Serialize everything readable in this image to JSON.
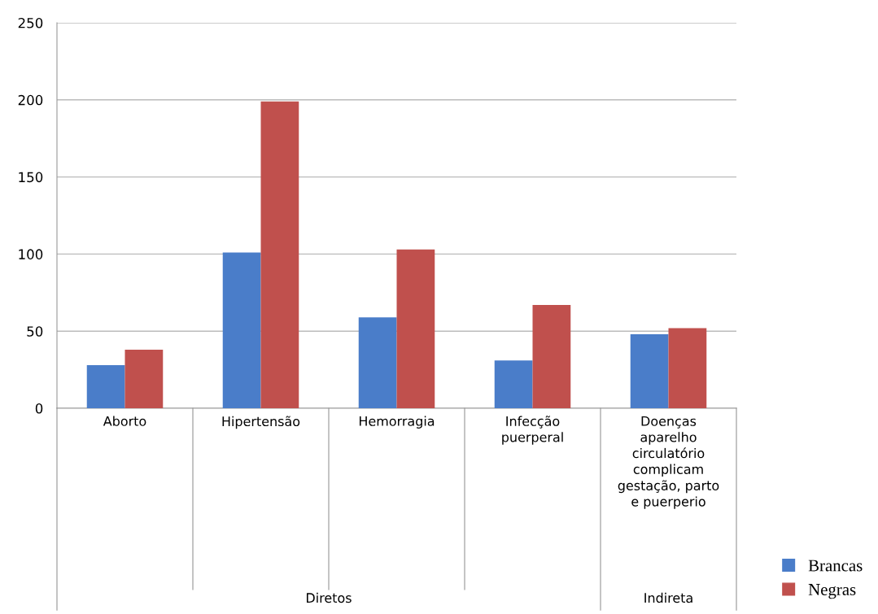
{
  "chart_data": {
    "type": "bar",
    "categories": [
      "Aborto",
      "Hipertensão",
      "Hemorragia",
      "Infecção\npuerperal",
      "Doenças\naparelho\ncirculatório\ncomplicam\ngestação, parto\ne puerperio"
    ],
    "series": [
      {
        "name": "Brancas",
        "color": "#4a7dc9",
        "values": [
          28,
          101,
          59,
          31,
          48
        ]
      },
      {
        "name": "Negras",
        "color": "#c0504d",
        "values": [
          38,
          199,
          103,
          67,
          52
        ]
      }
    ],
    "ylim": [
      0,
      250
    ],
    "yticks": [
      0,
      50,
      100,
      150,
      200,
      250
    ],
    "grid": "y",
    "legend": "bottom right",
    "annotations": [
      "Diretos",
      "Indireta"
    ]
  }
}
